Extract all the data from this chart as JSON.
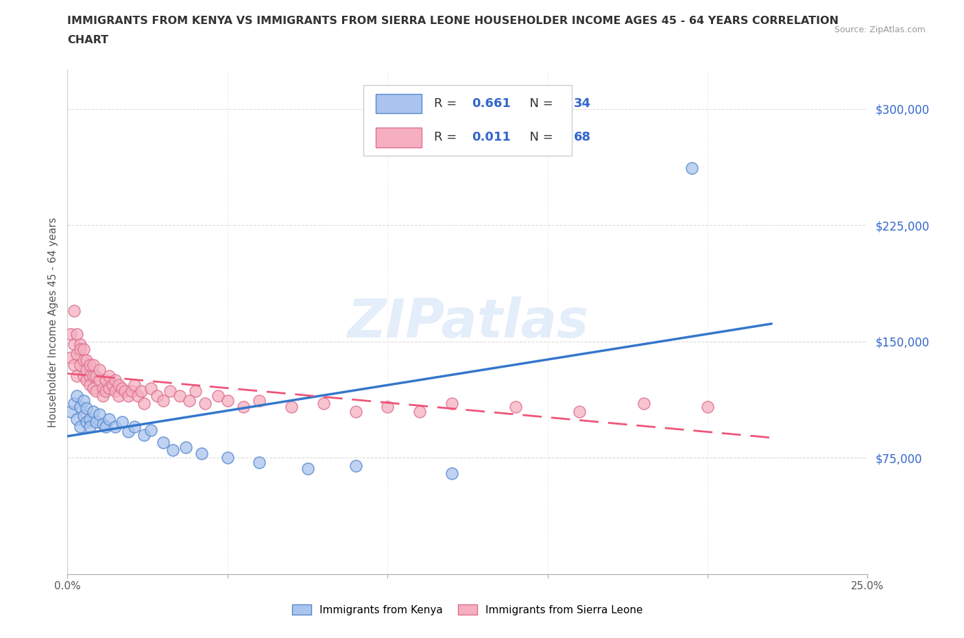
{
  "title_line1": "IMMIGRANTS FROM KENYA VS IMMIGRANTS FROM SIERRA LEONE HOUSEHOLDER INCOME AGES 45 - 64 YEARS CORRELATION",
  "title_line2": "CHART",
  "source": "Source: ZipAtlas.com",
  "ylabel": "Householder Income Ages 45 - 64 years",
  "xlim": [
    0.0,
    0.25
  ],
  "ylim": [
    0,
    325000
  ],
  "yticks": [
    0,
    75000,
    150000,
    225000,
    300000
  ],
  "ytick_labels": [
    "",
    "$75,000",
    "$150,000",
    "$225,000",
    "$300,000"
  ],
  "xticks": [
    0.0,
    0.05,
    0.1,
    0.15,
    0.2,
    0.25
  ],
  "xtick_labels": [
    "0.0%",
    "",
    "",
    "",
    "",
    "25.0%"
  ],
  "kenya_color": "#aac4ee",
  "sierra_color": "#f5afc0",
  "kenya_edge": "#5588cc",
  "sierra_edge": "#dd7090",
  "trend_kenya_color": "#3377cc",
  "trend_sierra_color": "#ee5577",
  "R_kenya": 0.661,
  "N_kenya": 34,
  "R_sierra": 0.011,
  "N_sierra": 68,
  "watermark": "ZIPatlas",
  "kenya_x": [
    0.001,
    0.002,
    0.003,
    0.003,
    0.004,
    0.004,
    0.005,
    0.005,
    0.006,
    0.006,
    0.007,
    0.007,
    0.008,
    0.009,
    0.01,
    0.011,
    0.012,
    0.013,
    0.015,
    0.017,
    0.019,
    0.021,
    0.024,
    0.026,
    0.03,
    0.033,
    0.037,
    0.042,
    0.05,
    0.06,
    0.075,
    0.09,
    0.12,
    0.195
  ],
  "kenya_y": [
    105000,
    110000,
    100000,
    115000,
    108000,
    95000,
    102000,
    112000,
    98000,
    107000,
    100000,
    95000,
    105000,
    98000,
    103000,
    97000,
    95000,
    100000,
    95000,
    98000,
    92000,
    95000,
    90000,
    93000,
    85000,
    80000,
    82000,
    78000,
    75000,
    72000,
    68000,
    70000,
    65000,
    262000
  ],
  "sierra_x": [
    0.001,
    0.001,
    0.002,
    0.002,
    0.002,
    0.003,
    0.003,
    0.003,
    0.004,
    0.004,
    0.004,
    0.005,
    0.005,
    0.005,
    0.006,
    0.006,
    0.006,
    0.007,
    0.007,
    0.007,
    0.008,
    0.008,
    0.008,
    0.009,
    0.009,
    0.01,
    0.01,
    0.011,
    0.011,
    0.012,
    0.012,
    0.013,
    0.013,
    0.014,
    0.015,
    0.015,
    0.016,
    0.016,
    0.017,
    0.018,
    0.019,
    0.02,
    0.021,
    0.022,
    0.023,
    0.024,
    0.026,
    0.028,
    0.03,
    0.032,
    0.035,
    0.038,
    0.04,
    0.043,
    0.047,
    0.05,
    0.055,
    0.06,
    0.07,
    0.08,
    0.09,
    0.1,
    0.11,
    0.12,
    0.14,
    0.16,
    0.18,
    0.2
  ],
  "sierra_y": [
    155000,
    140000,
    170000,
    148000,
    135000,
    155000,
    142000,
    128000,
    148000,
    135000,
    145000,
    138000,
    128000,
    145000,
    132000,
    125000,
    138000,
    128000,
    135000,
    122000,
    128000,
    135000,
    120000,
    128000,
    118000,
    125000,
    132000,
    120000,
    115000,
    125000,
    118000,
    120000,
    128000,
    122000,
    118000,
    125000,
    122000,
    115000,
    120000,
    118000,
    115000,
    118000,
    122000,
    115000,
    118000,
    110000,
    120000,
    115000,
    112000,
    118000,
    115000,
    112000,
    118000,
    110000,
    115000,
    112000,
    108000,
    112000,
    108000,
    110000,
    105000,
    108000,
    105000,
    110000,
    108000,
    105000,
    110000,
    108000
  ]
}
